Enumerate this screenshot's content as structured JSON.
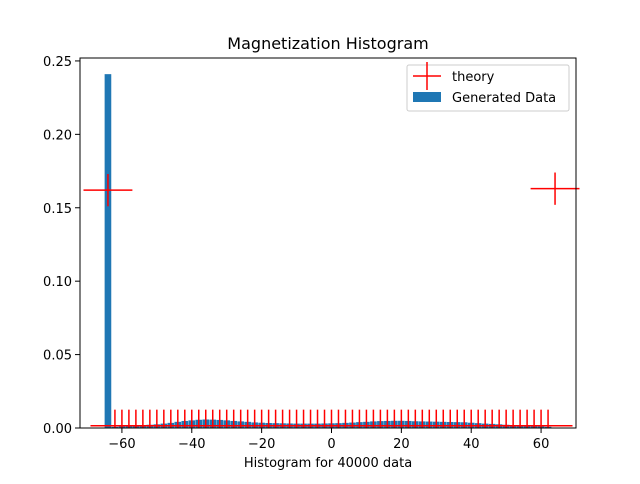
{
  "chart_data": {
    "type": "bar",
    "title": "Magnetization Histogram",
    "xlabel": "Histogram for 40000 data",
    "ylabel": "",
    "xlim": [
      -72,
      70
    ],
    "ylim": [
      0,
      0.252
    ],
    "xticks": [
      -60,
      -40,
      -20,
      0,
      20,
      40,
      60
    ],
    "xtick_labels": [
      "−60",
      "−40",
      "−20",
      "0",
      "20",
      "40",
      "60"
    ],
    "yticks": [
      0.0,
      0.05,
      0.1,
      0.15,
      0.2,
      0.25
    ],
    "ytick_labels": [
      "0.00",
      "0.05",
      "0.10",
      "0.15",
      "0.20",
      "0.25"
    ],
    "grid": false,
    "legend_position": "top-right",
    "series": [
      {
        "name": "theory",
        "kind": "errorbar",
        "color": "#ff0000",
        "x": [
          -64,
          -62,
          -60,
          -58,
          -56,
          -54,
          -52,
          -50,
          -48,
          -46,
          -44,
          -42,
          -40,
          -38,
          -36,
          -34,
          -32,
          -30,
          -28,
          -26,
          -24,
          -22,
          -20,
          -18,
          -16,
          -14,
          -12,
          -10,
          -8,
          -6,
          -4,
          -2,
          0,
          2,
          4,
          6,
          8,
          10,
          12,
          14,
          16,
          18,
          20,
          22,
          24,
          26,
          28,
          30,
          32,
          34,
          36,
          38,
          40,
          42,
          44,
          46,
          48,
          50,
          52,
          54,
          56,
          58,
          60,
          62,
          64
        ],
        "values": [
          0.162,
          0.0015,
          0.0015,
          0.0015,
          0.0015,
          0.0015,
          0.0015,
          0.0015,
          0.0015,
          0.0015,
          0.0015,
          0.0015,
          0.0015,
          0.0015,
          0.0015,
          0.0015,
          0.0015,
          0.0015,
          0.0015,
          0.0015,
          0.0015,
          0.0015,
          0.0015,
          0.0015,
          0.0015,
          0.0015,
          0.0015,
          0.0015,
          0.0015,
          0.0015,
          0.0015,
          0.0015,
          0.0015,
          0.0015,
          0.0015,
          0.0015,
          0.0015,
          0.0015,
          0.0015,
          0.0015,
          0.0015,
          0.0015,
          0.0015,
          0.0015,
          0.0015,
          0.0015,
          0.0015,
          0.0015,
          0.0015,
          0.0015,
          0.0015,
          0.0015,
          0.0015,
          0.0015,
          0.0015,
          0.0015,
          0.0015,
          0.0015,
          0.0015,
          0.0015,
          0.0015,
          0.0015,
          0.0015,
          0.0015,
          0.163
        ],
        "xerr": 7,
        "yerr": 0.011
      },
      {
        "name": "Generated Data",
        "kind": "bar",
        "color": "#1f77b4",
        "bin_width": 1.9,
        "x": [
          -64,
          -62,
          -60,
          -58,
          -56,
          -54,
          -52,
          -50,
          -48,
          -46,
          -44,
          -42,
          -40,
          -38,
          -36,
          -34,
          -32,
          -30,
          -28,
          -26,
          -24,
          -22,
          -20,
          -18,
          -16,
          -14,
          -12,
          -10,
          -8,
          -6,
          -4,
          -2,
          0,
          2,
          4,
          6,
          8,
          10,
          12,
          14,
          16,
          18,
          20,
          22,
          24,
          26,
          28,
          30,
          32,
          34,
          36,
          38,
          40,
          42,
          44,
          46,
          48,
          50,
          52,
          54,
          56,
          58,
          60,
          62
        ],
        "values": [
          0.241,
          0.0008,
          0.001,
          0.0012,
          0.0015,
          0.0018,
          0.0022,
          0.0025,
          0.003,
          0.0035,
          0.0042,
          0.0048,
          0.0052,
          0.0056,
          0.0058,
          0.0057,
          0.0055,
          0.0052,
          0.0048,
          0.0045,
          0.0042,
          0.0038,
          0.0036,
          0.0034,
          0.0033,
          0.0032,
          0.0031,
          0.003,
          0.003,
          0.003,
          0.003,
          0.0031,
          0.0032,
          0.0033,
          0.0035,
          0.0037,
          0.004,
          0.0042,
          0.0045,
          0.0047,
          0.0048,
          0.0049,
          0.0049,
          0.0048,
          0.0046,
          0.0045,
          0.0044,
          0.0043,
          0.0042,
          0.0041,
          0.004,
          0.0039,
          0.0036,
          0.0033,
          0.003,
          0.0028,
          0.0025,
          0.0022,
          0.002,
          0.0018,
          0.0015,
          0.0012,
          0.001,
          0.0008
        ]
      }
    ]
  }
}
